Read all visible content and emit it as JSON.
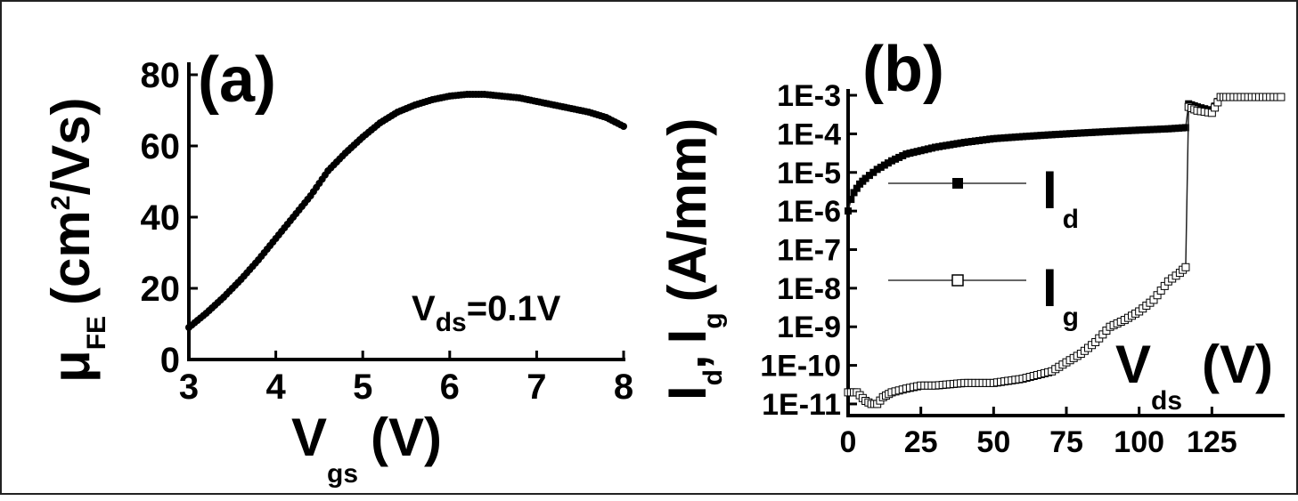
{
  "chart_data": [
    {
      "type": "scatter",
      "panel_label": "(a)",
      "xlabel": "V",
      "xlabel_sub": "gs",
      "xlabel_unit": "(V)",
      "ylabel_main": "μ",
      "ylabel_sub": "FE",
      "ylabel_unit_pre": "(cm",
      "ylabel_unit_sup": "2",
      "ylabel_unit_post": "/Vs)",
      "annotation_main": "V",
      "annotation_sub": "ds",
      "annotation_tail": "=0.1V",
      "xlim": [
        3,
        8
      ],
      "ylim": [
        0,
        80
      ],
      "xticks": [
        "3",
        "4",
        "5",
        "6",
        "7",
        "8"
      ],
      "yticks": [
        "0",
        "20",
        "40",
        "60",
        "80"
      ],
      "x": [
        3.0,
        3.2,
        3.4,
        3.6,
        3.8,
        4.0,
        4.2,
        4.4,
        4.6,
        4.8,
        5.0,
        5.2,
        5.4,
        5.6,
        5.8,
        6.0,
        6.2,
        6.4,
        6.6,
        6.8,
        7.0,
        7.2,
        7.4,
        7.6,
        7.8,
        8.0
      ],
      "y": [
        9,
        13,
        17.5,
        22.5,
        28,
        34,
        40,
        46,
        53,
        58,
        62.5,
        66.5,
        69.5,
        71.5,
        73,
        74,
        74.5,
        74.5,
        74,
        73.5,
        72.5,
        71.5,
        70.5,
        69.5,
        68,
        65.5
      ]
    },
    {
      "type": "line",
      "panel_label": "(b)",
      "xlabel": "V",
      "xlabel_sub": "ds",
      "xlabel_unit": "(V)",
      "ylabel_a": "I",
      "ylabel_a_sub": "d",
      "ylabel_comma": ",",
      "ylabel_b": "I",
      "ylabel_b_sub": "g",
      "ylabel_unit": "(A/mm)",
      "yscale": "log",
      "xlim": [
        0,
        150
      ],
      "ylim": [
        5e-12,
        0.002
      ],
      "xticks": [
        "0",
        "25",
        "50",
        "75",
        "100",
        "125"
      ],
      "yticks": [
        "1E-11",
        "1E-10",
        "1E-9",
        "1E-8",
        "1E-7",
        "1E-6",
        "1E-5",
        "1E-4",
        "1E-3"
      ],
      "legend_position": "center-left",
      "series": [
        {
          "name": "I",
          "name_sub": "d",
          "marker": "filled-square",
          "x": [
            0,
            1,
            2,
            4,
            6,
            10,
            15,
            20,
            30,
            40,
            50,
            60,
            70,
            80,
            90,
            100,
            110,
            116,
            117,
            120,
            125,
            128,
            130,
            135,
            140,
            145,
            150
          ],
          "y": [
            1e-06,
            2e-06,
            3e-06,
            5e-06,
            7e-06,
            1.2e-05,
            2e-05,
            3e-05,
            4.5e-05,
            6e-05,
            7.5e-05,
            8.5e-05,
            9.5e-05,
            0.000105,
            0.000115,
            0.000125,
            0.000135,
            0.000145,
            0.0006,
            0.0005,
            0.0004,
            0.0009,
            0.0009,
            0.0009,
            0.0009,
            0.0009,
            0.0009
          ]
        },
        {
          "name": "I",
          "name_sub": "g",
          "marker": "open-square",
          "x": [
            0,
            3,
            6,
            8,
            10,
            12,
            15,
            20,
            25,
            30,
            40,
            50,
            60,
            70,
            75,
            80,
            85,
            90,
            95,
            100,
            105,
            110,
            114,
            115,
            116,
            117,
            120,
            125,
            128,
            130,
            135,
            140,
            145,
            150
          ],
          "y": [
            2e-11,
            2e-11,
            1.2e-11,
            1e-11,
            1e-11,
            1.5e-11,
            2e-11,
            2.5e-11,
            3e-11,
            3e-11,
            3.5e-11,
            3.5e-11,
            4.5e-11,
            7e-11,
            1.2e-10,
            2e-10,
            4e-10,
            1e-09,
            1.5e-09,
            2.5e-09,
            5e-09,
            1.5e-08,
            2.5e-08,
            3e-08,
            3.5e-08,
            0.0005,
            0.0004,
            0.00035,
            0.0009,
            0.0009,
            0.0009,
            0.0009,
            0.0009,
            0.0009
          ]
        }
      ]
    }
  ]
}
